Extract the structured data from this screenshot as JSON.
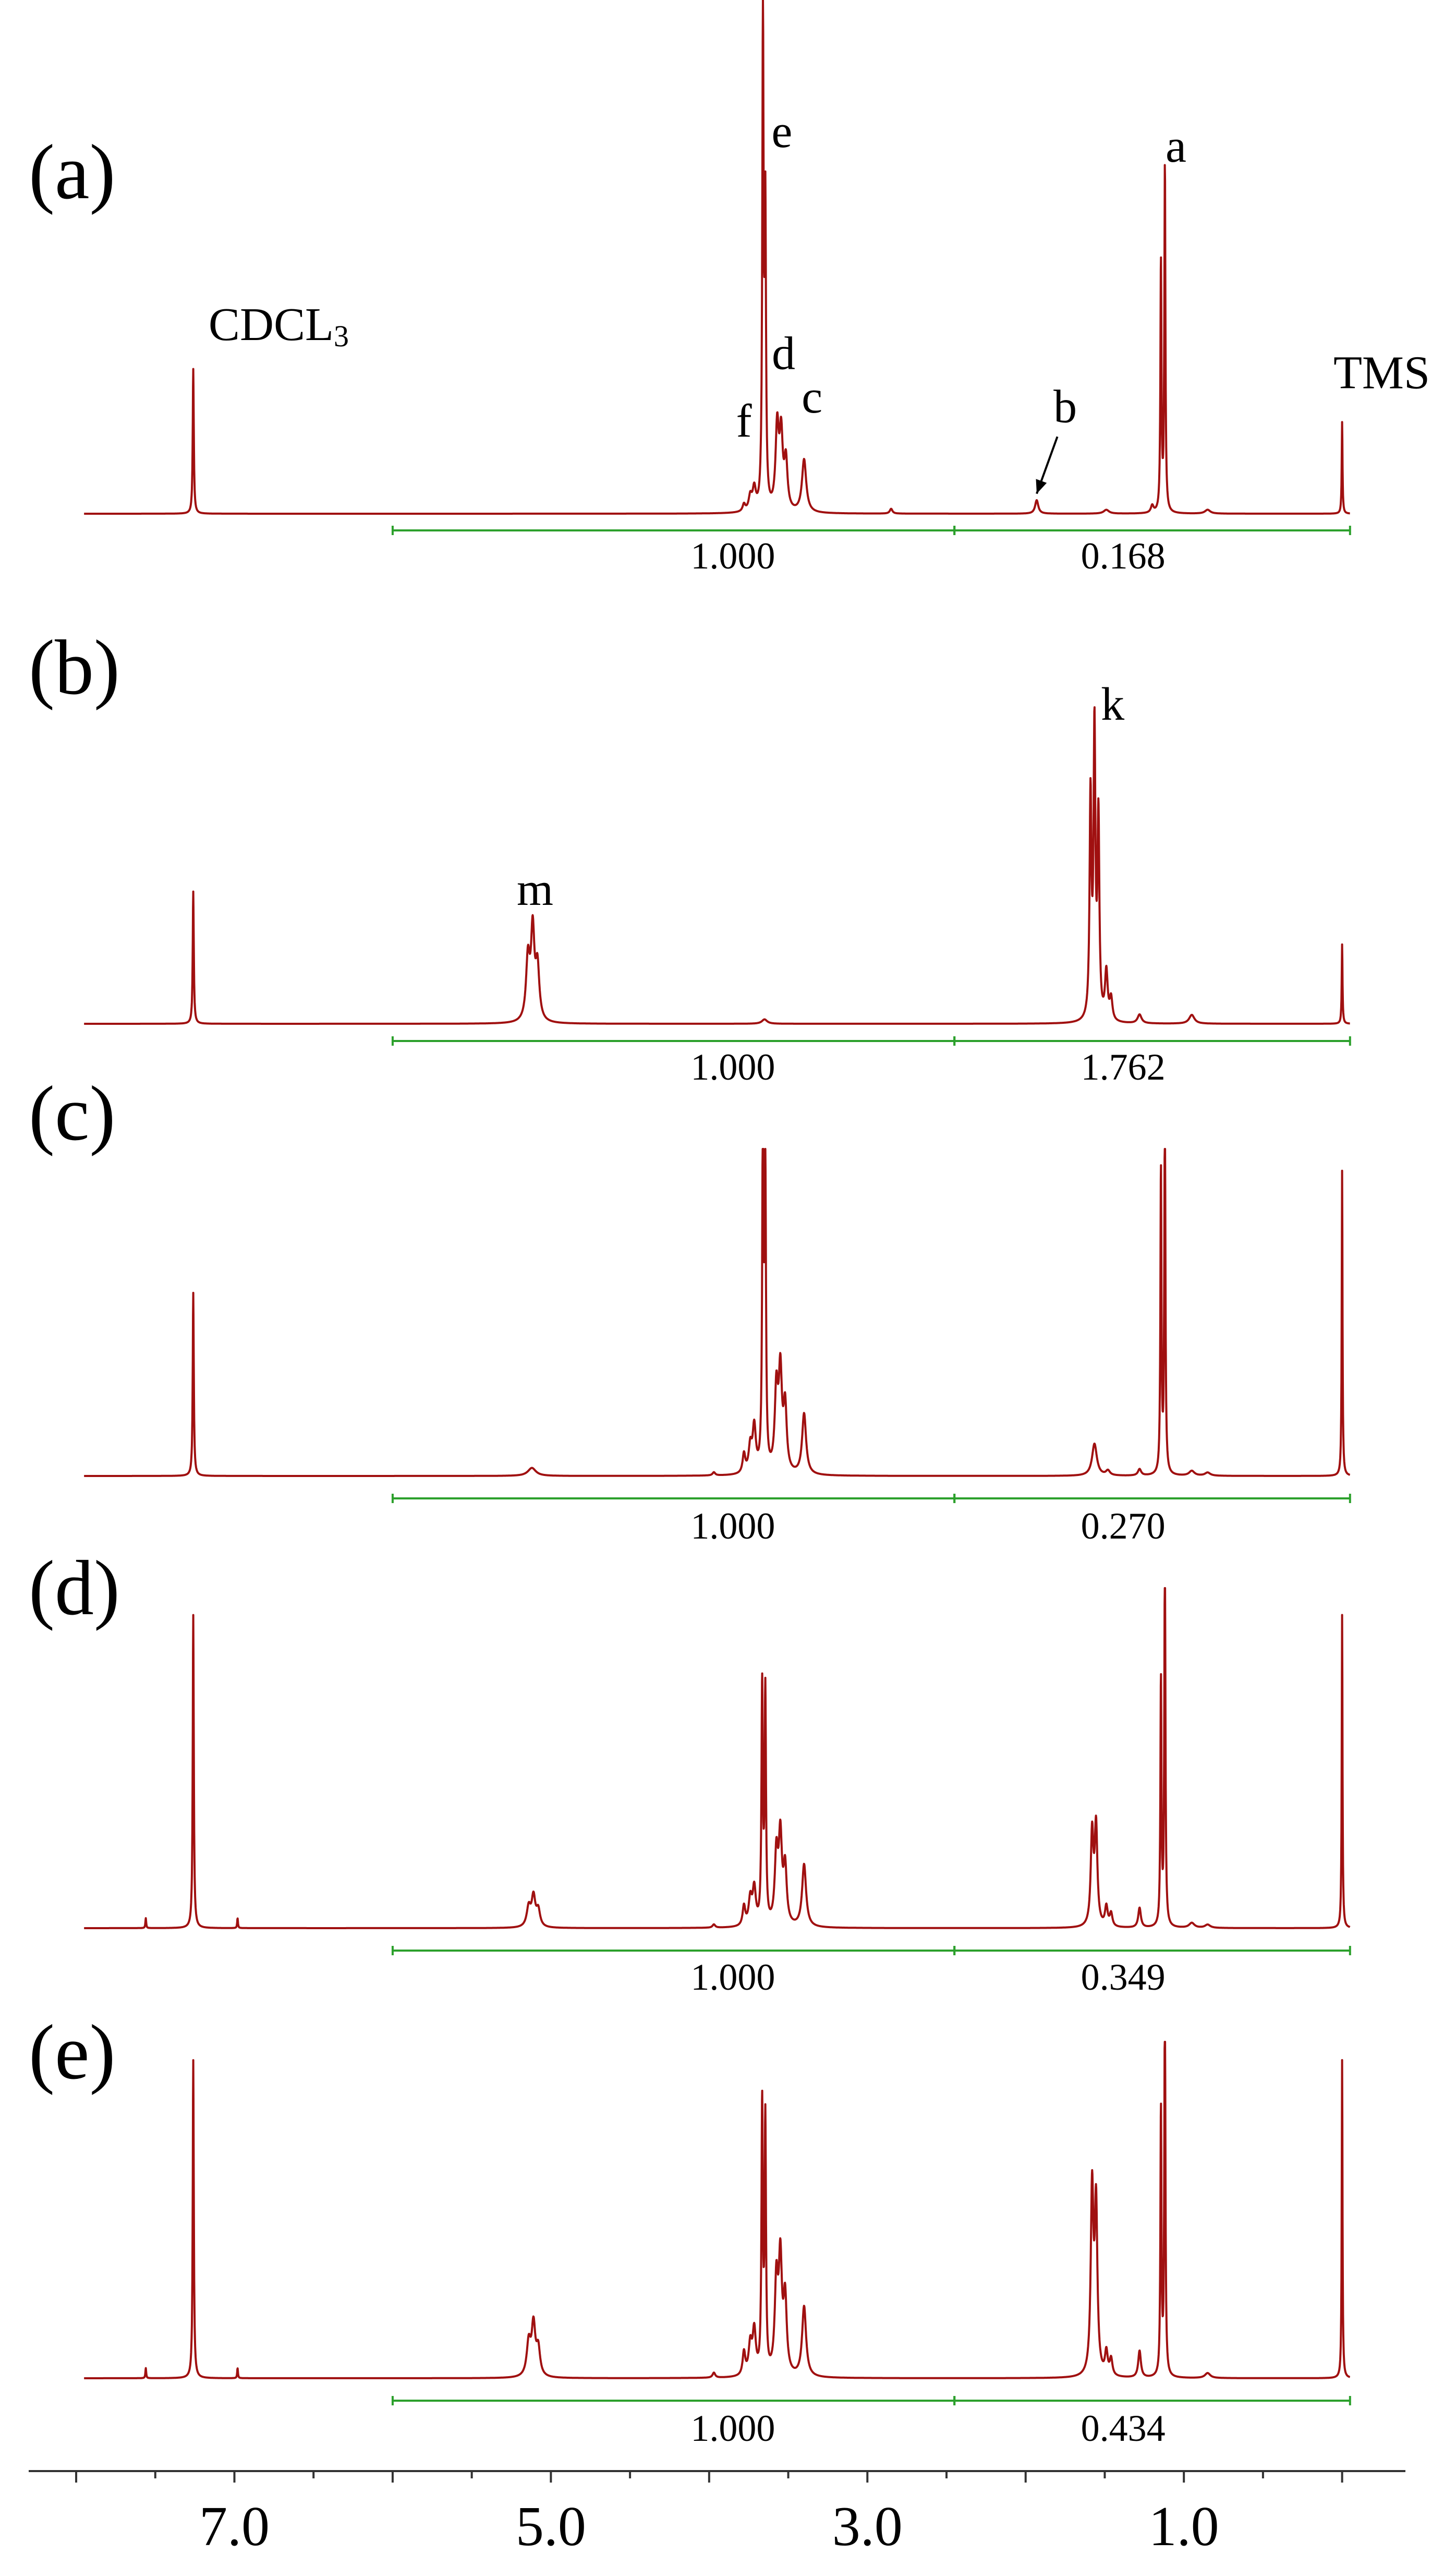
{
  "chart_data": {
    "type": "line",
    "chart_kind": "stacked 1H NMR spectra",
    "x_axis": {
      "units": "ppm",
      "reversed": true,
      "xlim": [
        8.3,
        -0.4
      ],
      "tick_labels": [
        {
          "value": 7.0,
          "label": "7.0"
        },
        {
          "value": 5.0,
          "label": "5.0"
        },
        {
          "value": 3.0,
          "label": "3.0"
        },
        {
          "value": 1.0,
          "label": "1.0"
        }
      ],
      "minor_tick_step": 0.5
    },
    "colors": {
      "spectrum": "#a01010",
      "integral": "#2ca02c",
      "axis": "#333333",
      "text": "#000000"
    },
    "grid": false,
    "panels": [
      {
        "id": "a",
        "label": "(a)",
        "peaks": [
          {
            "ppm": 7.26,
            "h": 0.3,
            "w": 0.004
          },
          {
            "ppm": 3.78,
            "h": 0.015,
            "w": 0.01
          },
          {
            "ppm": 3.74,
            "h": 0.03,
            "w": 0.012
          },
          {
            "ppm": 3.715,
            "h": 0.045,
            "w": 0.012
          },
          {
            "ppm": 3.66,
            "h": 1.0,
            "w": 0.005
          },
          {
            "ppm": 3.645,
            "h": 0.6,
            "w": 0.005
          },
          {
            "ppm": 3.57,
            "h": 0.17,
            "w": 0.012
          },
          {
            "ppm": 3.545,
            "h": 0.15,
            "w": 0.012
          },
          {
            "ppm": 3.515,
            "h": 0.1,
            "w": 0.012
          },
          {
            "ppm": 3.4,
            "h": 0.11,
            "w": 0.016
          },
          {
            "ppm": 2.85,
            "h": 0.01,
            "w": 0.01
          },
          {
            "ppm": 1.93,
            "h": 0.028,
            "w": 0.012
          },
          {
            "ppm": 1.49,
            "h": 0.008,
            "w": 0.02
          },
          {
            "ppm": 1.2,
            "h": 0.015,
            "w": 0.01
          },
          {
            "ppm": 1.145,
            "h": 0.52,
            "w": 0.004
          },
          {
            "ppm": 1.12,
            "h": 0.72,
            "w": 0.004
          },
          {
            "ppm": 0.85,
            "h": 0.008,
            "w": 0.02
          },
          {
            "ppm": 0.0,
            "h": 0.19,
            "w": 0.003
          }
        ],
        "integrals": [
          {
            "from": 6.0,
            "to": 2.45,
            "value": "1.000"
          },
          {
            "from": 2.45,
            "to": -0.05,
            "value": "0.168"
          }
        ],
        "annotations": [
          {
            "text": "e",
            "ppm": 3.54,
            "h": 0.76
          },
          {
            "text": "a",
            "ppm": 1.05,
            "h": 0.73
          },
          {
            "text": "d",
            "ppm": 3.53,
            "h": 0.3
          },
          {
            "text": "c",
            "ppm": 3.35,
            "h": 0.21
          },
          {
            "text": "f",
            "ppm": 3.78,
            "h": 0.16
          },
          {
            "text": "b",
            "ppm": 1.75,
            "h": 0.19,
            "arrow_to_ppm": 1.93,
            "arrow_to_h": 0.035
          },
          {
            "text": "TMS",
            "ppm": -0.25,
            "h": 0.26
          },
          {
            "text": "CDCL",
            "sub": "3",
            "ppm": 6.72,
            "h": 0.36
          }
        ]
      },
      {
        "id": "b",
        "label": "(b)",
        "peaks": [
          {
            "ppm": 7.26,
            "h": 0.3,
            "w": 0.004
          },
          {
            "ppm": 5.145,
            "h": 0.14,
            "w": 0.014
          },
          {
            "ppm": 5.115,
            "h": 0.2,
            "w": 0.013
          },
          {
            "ppm": 5.085,
            "h": 0.12,
            "w": 0.014
          },
          {
            "ppm": 3.65,
            "h": 0.01,
            "w": 0.02
          },
          {
            "ppm": 1.59,
            "h": 0.5,
            "w": 0.007
          },
          {
            "ppm": 1.565,
            "h": 0.65,
            "w": 0.007
          },
          {
            "ppm": 1.54,
            "h": 0.45,
            "w": 0.007
          },
          {
            "ppm": 1.49,
            "h": 0.11,
            "w": 0.01
          },
          {
            "ppm": 1.46,
            "h": 0.05,
            "w": 0.01
          },
          {
            "ppm": 1.28,
            "h": 0.02,
            "w": 0.015
          },
          {
            "ppm": 0.95,
            "h": 0.02,
            "w": 0.02
          },
          {
            "ppm": 0.0,
            "h": 0.18,
            "w": 0.003
          }
        ],
        "integrals": [
          {
            "from": 6.0,
            "to": 2.45,
            "value": "1.000"
          },
          {
            "from": 2.45,
            "to": -0.05,
            "value": "1.762"
          }
        ],
        "annotations": [
          {
            "text": "m",
            "ppm": 5.1,
            "h": 0.27
          },
          {
            "text": "k",
            "ppm": 1.45,
            "h": 0.69
          }
        ]
      },
      {
        "id": "c",
        "label": "(c)",
        "peaks": [
          {
            "ppm": 7.26,
            "h": 0.57,
            "w": 0.004
          },
          {
            "ppm": 5.12,
            "h": 0.025,
            "w": 0.03
          },
          {
            "ppm": 3.97,
            "h": 0.01,
            "w": 0.01
          },
          {
            "ppm": 3.78,
            "h": 0.06,
            "w": 0.01
          },
          {
            "ppm": 3.74,
            "h": 0.08,
            "w": 0.012
          },
          {
            "ppm": 3.715,
            "h": 0.14,
            "w": 0.012
          },
          {
            "ppm": 3.66,
            "h": 1.2,
            "w": 0.005
          },
          {
            "ppm": 3.645,
            "h": 0.9,
            "w": 0.005
          },
          {
            "ppm": 3.575,
            "h": 0.25,
            "w": 0.012
          },
          {
            "ppm": 3.55,
            "h": 0.3,
            "w": 0.012
          },
          {
            "ppm": 3.52,
            "h": 0.2,
            "w": 0.012
          },
          {
            "ppm": 3.4,
            "h": 0.19,
            "w": 0.015
          },
          {
            "ppm": 1.565,
            "h": 0.1,
            "w": 0.018
          },
          {
            "ppm": 1.48,
            "h": 0.015,
            "w": 0.015
          },
          {
            "ppm": 1.28,
            "h": 0.02,
            "w": 0.012
          },
          {
            "ppm": 1.145,
            "h": 0.95,
            "w": 0.004
          },
          {
            "ppm": 1.12,
            "h": 1.2,
            "w": 0.004
          },
          {
            "ppm": 0.95,
            "h": 0.015,
            "w": 0.02
          },
          {
            "ppm": 0.85,
            "h": 0.01,
            "w": 0.02
          },
          {
            "ppm": 0.0,
            "h": 0.95,
            "w": 0.003
          }
        ],
        "integrals": [
          {
            "from": 6.0,
            "to": 2.45,
            "value": "1.000"
          },
          {
            "from": 2.45,
            "to": -0.05,
            "value": "0.270"
          }
        ],
        "annotations": []
      },
      {
        "id": "d",
        "label": "(d)",
        "peaks": [
          {
            "ppm": 7.56,
            "h": 0.03,
            "w": 0.003
          },
          {
            "ppm": 7.26,
            "h": 0.95,
            "w": 0.004
          },
          {
            "ppm": 6.98,
            "h": 0.03,
            "w": 0.003
          },
          {
            "ppm": 5.14,
            "h": 0.06,
            "w": 0.015
          },
          {
            "ppm": 5.11,
            "h": 0.09,
            "w": 0.014
          },
          {
            "ppm": 5.08,
            "h": 0.05,
            "w": 0.014
          },
          {
            "ppm": 3.97,
            "h": 0.01,
            "w": 0.01
          },
          {
            "ppm": 3.78,
            "h": 0.06,
            "w": 0.01
          },
          {
            "ppm": 3.74,
            "h": 0.08,
            "w": 0.012
          },
          {
            "ppm": 3.715,
            "h": 0.11,
            "w": 0.012
          },
          {
            "ppm": 3.665,
            "h": 0.72,
            "w": 0.005
          },
          {
            "ppm": 3.645,
            "h": 0.7,
            "w": 0.005
          },
          {
            "ppm": 3.575,
            "h": 0.21,
            "w": 0.012
          },
          {
            "ppm": 3.55,
            "h": 0.26,
            "w": 0.012
          },
          {
            "ppm": 3.52,
            "h": 0.17,
            "w": 0.012
          },
          {
            "ppm": 3.4,
            "h": 0.19,
            "w": 0.015
          },
          {
            "ppm": 1.58,
            "h": 0.28,
            "w": 0.01
          },
          {
            "ppm": 1.555,
            "h": 0.3,
            "w": 0.01
          },
          {
            "ppm": 1.49,
            "h": 0.06,
            "w": 0.01
          },
          {
            "ppm": 1.46,
            "h": 0.04,
            "w": 0.01
          },
          {
            "ppm": 1.28,
            "h": 0.06,
            "w": 0.01
          },
          {
            "ppm": 1.145,
            "h": 0.75,
            "w": 0.004
          },
          {
            "ppm": 1.12,
            "h": 1.2,
            "w": 0.004
          },
          {
            "ppm": 0.95,
            "h": 0.015,
            "w": 0.02
          },
          {
            "ppm": 0.85,
            "h": 0.01,
            "w": 0.02
          },
          {
            "ppm": 0.0,
            "h": 0.95,
            "w": 0.003
          }
        ],
        "integrals": [
          {
            "from": 6.0,
            "to": 2.45,
            "value": "1.000"
          },
          {
            "from": 2.45,
            "to": -0.05,
            "value": "0.349"
          }
        ],
        "annotations": []
      },
      {
        "id": "e",
        "label": "(e)",
        "peaks": [
          {
            "ppm": 7.56,
            "h": 0.03,
            "w": 0.003
          },
          {
            "ppm": 7.26,
            "h": 0.95,
            "w": 0.004
          },
          {
            "ppm": 6.98,
            "h": 0.03,
            "w": 0.003
          },
          {
            "ppm": 5.14,
            "h": 0.1,
            "w": 0.015
          },
          {
            "ppm": 5.11,
            "h": 0.15,
            "w": 0.014
          },
          {
            "ppm": 5.08,
            "h": 0.08,
            "w": 0.014
          },
          {
            "ppm": 3.97,
            "h": 0.015,
            "w": 0.01
          },
          {
            "ppm": 3.78,
            "h": 0.07,
            "w": 0.01
          },
          {
            "ppm": 3.74,
            "h": 0.09,
            "w": 0.012
          },
          {
            "ppm": 3.715,
            "h": 0.13,
            "w": 0.012
          },
          {
            "ppm": 3.665,
            "h": 0.8,
            "w": 0.005
          },
          {
            "ppm": 3.645,
            "h": 0.75,
            "w": 0.005
          },
          {
            "ppm": 3.575,
            "h": 0.27,
            "w": 0.012
          },
          {
            "ppm": 3.55,
            "h": 0.33,
            "w": 0.012
          },
          {
            "ppm": 3.52,
            "h": 0.22,
            "w": 0.012
          },
          {
            "ppm": 3.4,
            "h": 0.21,
            "w": 0.015
          },
          {
            "ppm": 1.58,
            "h": 0.55,
            "w": 0.01
          },
          {
            "ppm": 1.555,
            "h": 0.5,
            "w": 0.01
          },
          {
            "ppm": 1.49,
            "h": 0.07,
            "w": 0.01
          },
          {
            "ppm": 1.46,
            "h": 0.05,
            "w": 0.01
          },
          {
            "ppm": 1.28,
            "h": 0.08,
            "w": 0.01
          },
          {
            "ppm": 1.145,
            "h": 0.8,
            "w": 0.004
          },
          {
            "ppm": 1.12,
            "h": 1.2,
            "w": 0.004
          },
          {
            "ppm": 0.85,
            "h": 0.015,
            "w": 0.02
          },
          {
            "ppm": 0.0,
            "h": 0.95,
            "w": 0.003
          }
        ],
        "integrals": [
          {
            "from": 6.0,
            "to": 2.45,
            "value": "1.000"
          },
          {
            "from": 2.45,
            "to": -0.05,
            "value": "0.434"
          }
        ],
        "annotations": []
      }
    ]
  }
}
